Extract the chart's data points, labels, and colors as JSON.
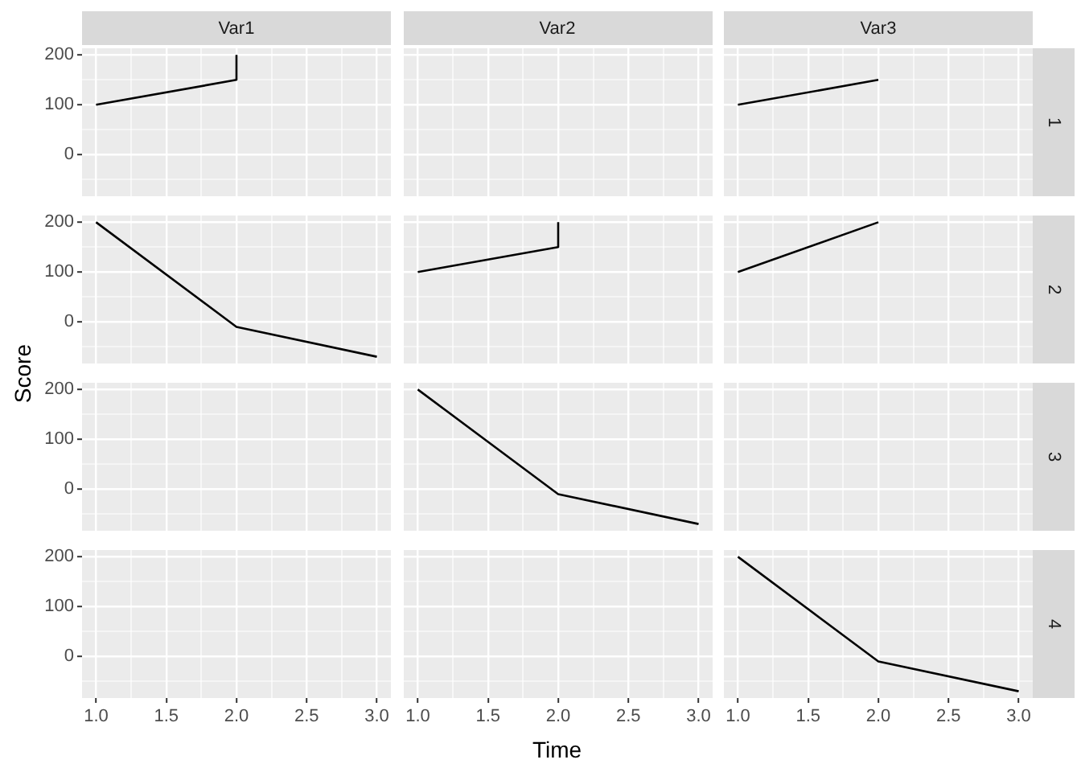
{
  "chart_data": [
    {
      "type": "line",
      "title": "Var1",
      "xlim": [
        0.9,
        3.1
      ],
      "xticks": [
        1,
        {
          "value": 1.25,
          "label": null
        },
        1.5,
        {
          "value": 1.75,
          "label": null
        },
        2,
        {
          "value": 2.25,
          "label": null
        },
        2.5,
        {
          "value": 2.75,
          "label": null
        },
        3
      ],
      "ylim": [
        -83.5,
        213.5
      ],
      "yticks": [
        {
          "value": -50,
          "label": null
        },
        0,
        {
          "value": 50,
          "label": null
        },
        100,
        {
          "value": 150,
          "label": null
        },
        200
      ],
      "grid": true,
      "tick_labels": "y",
      "series": [
        {
          "color": "#000000",
          "x": [
            1,
            2,
            2
          ],
          "values": [
            100,
            150,
            200
          ]
        }
      ]
    },
    {
      "type": "line",
      "title": "Var2",
      "xlim": [
        0.9,
        3.1
      ],
      "xticks": [
        1,
        {
          "value": 1.25,
          "label": null
        },
        1.5,
        {
          "value": 1.75,
          "label": null
        },
        2,
        {
          "value": 2.25,
          "label": null
        },
        2.5,
        {
          "value": 2.75,
          "label": null
        },
        3
      ],
      "ylim": [
        -83.5,
        213.5
      ],
      "yticks": [
        {
          "value": -50,
          "label": null
        },
        0,
        {
          "value": 50,
          "label": null
        },
        100,
        {
          "value": 150,
          "label": null
        },
        200
      ],
      "grid": true,
      "tick_labels": false
    },
    {
      "type": "line",
      "title": "Var3",
      "y2label": "1",
      "xlim": [
        0.9,
        3.1
      ],
      "xticks": [
        1,
        {
          "value": 1.25,
          "label": null
        },
        1.5,
        {
          "value": 1.75,
          "label": null
        },
        2,
        {
          "value": 2.25,
          "label": null
        },
        2.5,
        {
          "value": 2.75,
          "label": null
        },
        3
      ],
      "ylim": [
        -83.5,
        213.5
      ],
      "yticks": [
        {
          "value": -50,
          "label": null
        },
        0,
        {
          "value": 50,
          "label": null
        },
        100,
        {
          "value": 150,
          "label": null
        },
        200
      ],
      "grid": true,
      "tick_labels": false,
      "series": [
        {
          "color": "#000000",
          "x": [
            1,
            2
          ],
          "values": [
            100,
            150
          ]
        }
      ]
    },
    {
      "type": "line",
      "ylabel": "Score",
      "xlim": [
        0.9,
        3.1
      ],
      "xticks": [
        1,
        {
          "value": 1.25,
          "label": null
        },
        1.5,
        {
          "value": 1.75,
          "label": null
        },
        2,
        {
          "value": 2.25,
          "label": null
        },
        2.5,
        {
          "value": 2.75,
          "label": null
        },
        3
      ],
      "ylim": [
        -83.5,
        213.5
      ],
      "yticks": [
        {
          "value": -50,
          "label": null
        },
        0,
        {
          "value": 50,
          "label": null
        },
        100,
        {
          "value": 150,
          "label": null
        },
        200
      ],
      "grid": true,
      "tick_labels": "y",
      "series": [
        {
          "color": "#000000",
          "x": [
            1,
            2,
            3
          ],
          "values": [
            200,
            -10,
            -70
          ]
        }
      ]
    },
    {
      "type": "line",
      "xlim": [
        0.9,
        3.1
      ],
      "xticks": [
        1,
        {
          "value": 1.25,
          "label": null
        },
        1.5,
        {
          "value": 1.75,
          "label": null
        },
        2,
        {
          "value": 2.25,
          "label": null
        },
        2.5,
        {
          "value": 2.75,
          "label": null
        },
        3
      ],
      "ylim": [
        -83.5,
        213.5
      ],
      "yticks": [
        {
          "value": -50,
          "label": null
        },
        0,
        {
          "value": 50,
          "label": null
        },
        100,
        {
          "value": 150,
          "label": null
        },
        200
      ],
      "grid": true,
      "tick_labels": false,
      "series": [
        {
          "color": "#000000",
          "x": [
            1,
            2,
            2
          ],
          "values": [
            100,
            150,
            200
          ]
        }
      ]
    },
    {
      "type": "line",
      "y2label": "2",
      "xlim": [
        0.9,
        3.1
      ],
      "xticks": [
        1,
        {
          "value": 1.25,
          "label": null
        },
        1.5,
        {
          "value": 1.75,
          "label": null
        },
        2,
        {
          "value": 2.25,
          "label": null
        },
        2.5,
        {
          "value": 2.75,
          "label": null
        },
        3
      ],
      "ylim": [
        -83.5,
        213.5
      ],
      "yticks": [
        {
          "value": -50,
          "label": null
        },
        0,
        {
          "value": 50,
          "label": null
        },
        100,
        {
          "value": 150,
          "label": null
        },
        200
      ],
      "grid": true,
      "tick_labels": false,
      "series": [
        {
          "color": "#000000",
          "x": [
            1,
            2
          ],
          "values": [
            100,
            200
          ]
        }
      ]
    },
    {
      "type": "line",
      "xlim": [
        0.9,
        3.1
      ],
      "xticks": [
        1,
        {
          "value": 1.25,
          "label": null
        },
        1.5,
        {
          "value": 1.75,
          "label": null
        },
        2,
        {
          "value": 2.25,
          "label": null
        },
        2.5,
        {
          "value": 2.75,
          "label": null
        },
        3
      ],
      "ylim": [
        -83.5,
        213.5
      ],
      "yticks": [
        {
          "value": -50,
          "label": null
        },
        0,
        {
          "value": 50,
          "label": null
        },
        100,
        {
          "value": 150,
          "label": null
        },
        200
      ],
      "grid": true,
      "tick_labels": "y"
    },
    {
      "type": "line",
      "xlim": [
        0.9,
        3.1
      ],
      "xticks": [
        1,
        {
          "value": 1.25,
          "label": null
        },
        1.5,
        {
          "value": 1.75,
          "label": null
        },
        2,
        {
          "value": 2.25,
          "label": null
        },
        2.5,
        {
          "value": 2.75,
          "label": null
        },
        3
      ],
      "ylim": [
        -83.5,
        213.5
      ],
      "yticks": [
        {
          "value": -50,
          "label": null
        },
        0,
        {
          "value": 50,
          "label": null
        },
        100,
        {
          "value": 150,
          "label": null
        },
        200
      ],
      "grid": true,
      "tick_labels": false,
      "series": [
        {
          "color": "#000000",
          "x": [
            1,
            2,
            3
          ],
          "values": [
            200,
            -10,
            -70
          ]
        }
      ]
    },
    {
      "type": "line",
      "y2label": "3",
      "xlim": [
        0.9,
        3.1
      ],
      "xticks": [
        1,
        {
          "value": 1.25,
          "label": null
        },
        1.5,
        {
          "value": 1.75,
          "label": null
        },
        2,
        {
          "value": 2.25,
          "label": null
        },
        2.5,
        {
          "value": 2.75,
          "label": null
        },
        3
      ],
      "ylim": [
        -83.5,
        213.5
      ],
      "yticks": [
        {
          "value": -50,
          "label": null
        },
        0,
        {
          "value": 50,
          "label": null
        },
        100,
        {
          "value": 150,
          "label": null
        },
        200
      ],
      "grid": true,
      "tick_labels": false
    },
    {
      "type": "line",
      "xlim": [
        0.9,
        3.1
      ],
      "xticks": [
        {
          "value": 1,
          "label": "1.0"
        },
        {
          "value": 1.25,
          "label": null
        },
        {
          "value": 1.5,
          "label": "1.5"
        },
        {
          "value": 1.75,
          "label": null
        },
        {
          "value": 2,
          "label": "2.0"
        },
        {
          "value": 2.25,
          "label": null
        },
        {
          "value": 2.5,
          "label": "2.5"
        },
        {
          "value": 2.75,
          "label": null
        },
        {
          "value": 3,
          "label": "3.0"
        }
      ],
      "ylim": [
        -83.5,
        213.5
      ],
      "yticks": [
        {
          "value": -50,
          "label": null
        },
        0,
        {
          "value": 50,
          "label": null
        },
        100,
        {
          "value": 150,
          "label": null
        },
        200
      ],
      "grid": true
    },
    {
      "type": "line",
      "xlabel": "Time",
      "xlim": [
        0.9,
        3.1
      ],
      "xticks": [
        {
          "value": 1,
          "label": "1.0"
        },
        {
          "value": 1.25,
          "label": null
        },
        {
          "value": 1.5,
          "label": "1.5"
        },
        {
          "value": 1.75,
          "label": null
        },
        {
          "value": 2,
          "label": "2.0"
        },
        {
          "value": 2.25,
          "label": null
        },
        {
          "value": 2.5,
          "label": "2.5"
        },
        {
          "value": 2.75,
          "label": null
        },
        {
          "value": 3,
          "label": "3.0"
        }
      ],
      "ylim": [
        -83.5,
        213.5
      ],
      "yticks": [
        {
          "value": -50,
          "label": null
        },
        0,
        {
          "value": 50,
          "label": null
        },
        100,
        {
          "value": 150,
          "label": null
        },
        200
      ],
      "grid": true,
      "tick_labels": "x"
    },
    {
      "type": "line",
      "y2label": "4",
      "xlim": [
        0.9,
        3.1
      ],
      "xticks": [
        {
          "value": 1,
          "label": "1.0"
        },
        {
          "value": 1.25,
          "label": null
        },
        {
          "value": 1.5,
          "label": "1.5"
        },
        {
          "value": 1.75,
          "label": null
        },
        {
          "value": 2,
          "label": "2.0"
        },
        {
          "value": 2.25,
          "label": null
        },
        {
          "value": 2.5,
          "label": "2.5"
        },
        {
          "value": 2.75,
          "label": null
        },
        {
          "value": 3,
          "label": "3.0"
        }
      ],
      "ylim": [
        -83.5,
        213.5
      ],
      "yticks": [
        {
          "value": -50,
          "label": null
        },
        0,
        {
          "value": 50,
          "label": null
        },
        100,
        {
          "value": 150,
          "label": null
        },
        200
      ],
      "grid": true,
      "tick_labels": "x",
      "series": [
        {
          "color": "#000000",
          "x": [
            1,
            2,
            3
          ],
          "values": [
            200,
            -10,
            -70
          ]
        }
      ]
    }
  ]
}
